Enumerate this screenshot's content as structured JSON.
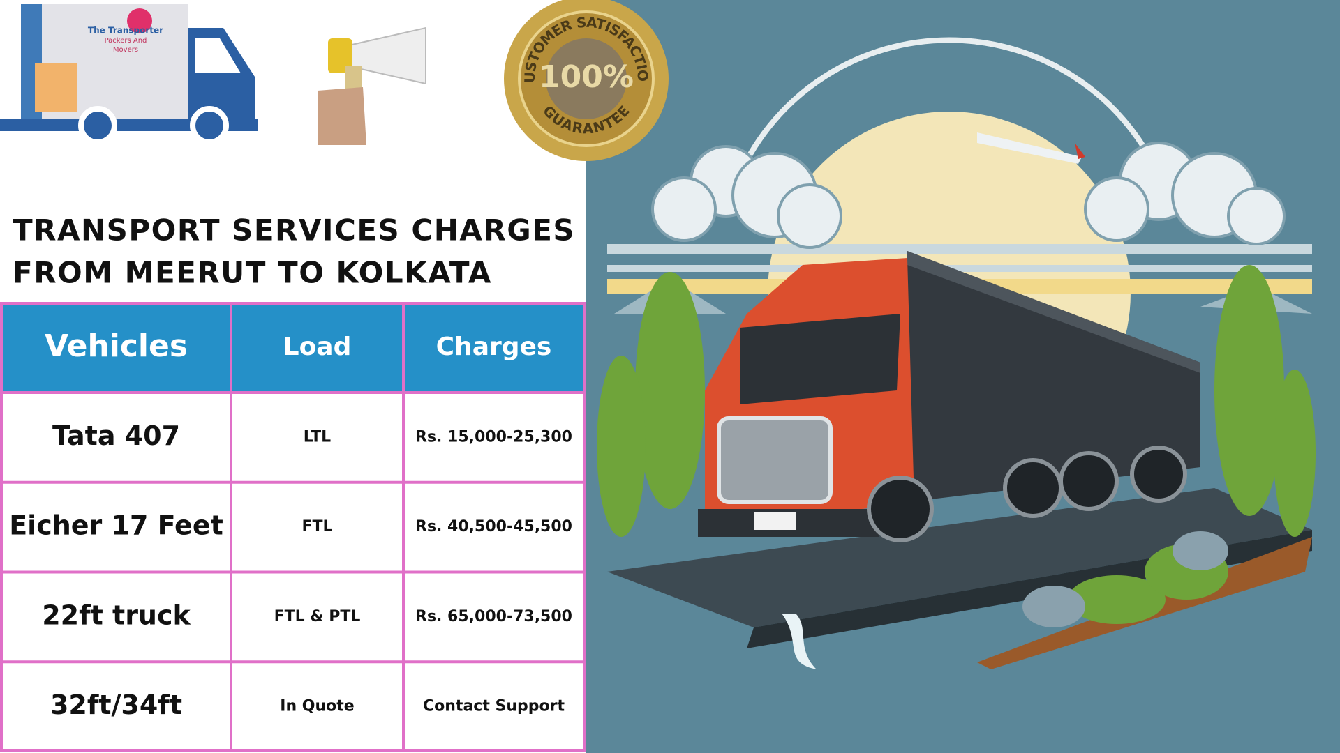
{
  "logo": {
    "lines": [
      "The Transporter",
      "Packers And",
      "Movers"
    ]
  },
  "badge": {
    "top": "CUSTOMER SATISFACTION",
    "center": "100%",
    "bottom": "GUARANTEE"
  },
  "title": {
    "lines": [
      "TRANSPORT SERVICES CHARGES",
      "FROM MEERUT TO KOLKATA"
    ]
  },
  "table": {
    "headers": [
      "Vehicles",
      "Load",
      "Charges"
    ],
    "rows": [
      [
        "Tata 407",
        "LTL",
        "Rs. 15,000-25,300"
      ],
      [
        "Eicher 17 Feet",
        "FTL",
        "Rs. 40,500-45,500"
      ],
      [
        "22ft truck",
        "FTL & PTL",
        "Rs. 65,000-73,500"
      ],
      [
        "32ft/34ft",
        "In Quote",
        "Contact Support"
      ]
    ]
  }
}
